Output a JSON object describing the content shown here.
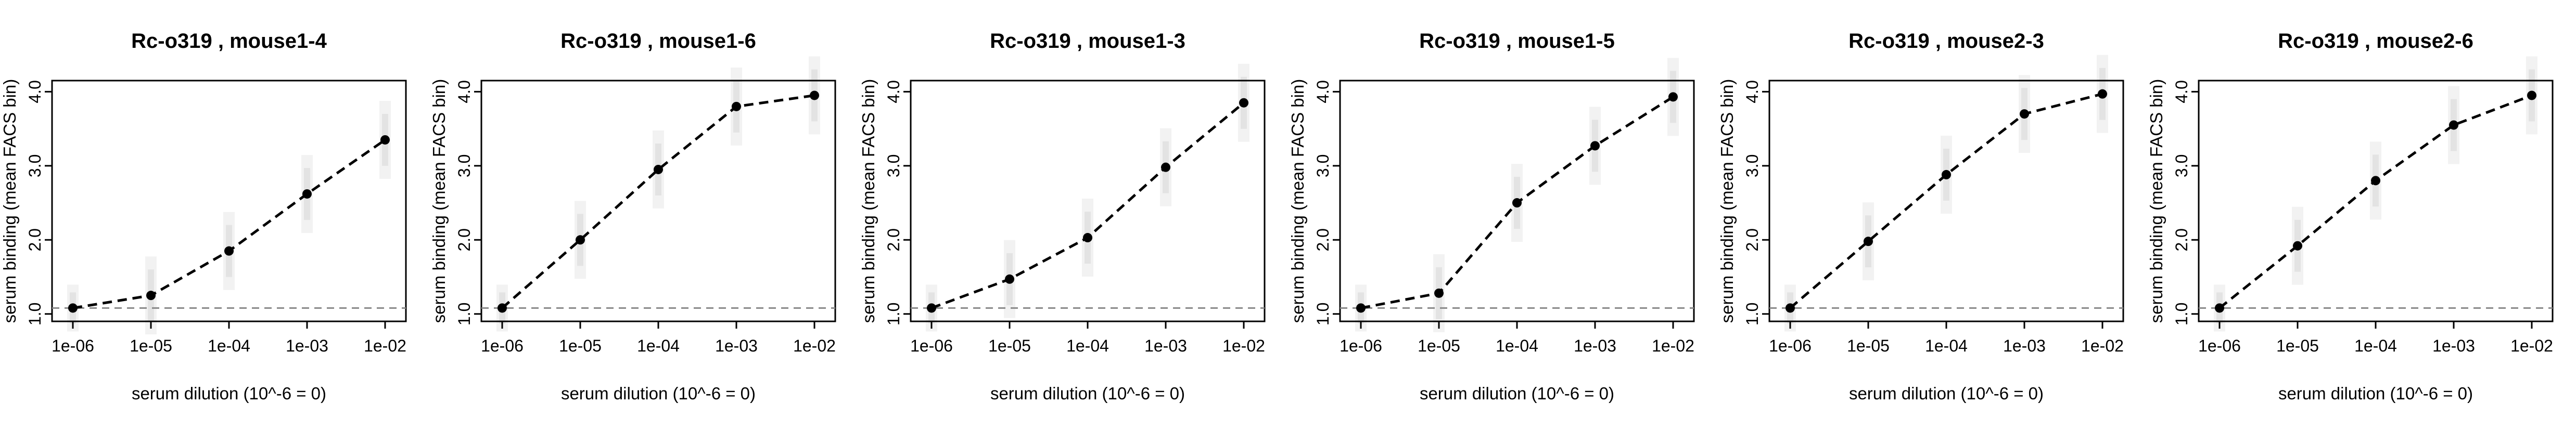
{
  "chart_data": [
    {
      "type": "line",
      "title": "Rc-o319 , mouse1-4",
      "xlabel": "serum dilution (10^-6 = 0)",
      "ylabel": "serum binding (mean FACS bin)",
      "x_scale": "log",
      "x": [
        1e-06,
        1e-05,
        0.0001,
        0.001,
        0.01
      ],
      "x_ticklabels": [
        "1e-06",
        "1e-05",
        "1e-04",
        "1e-03",
        "1e-02"
      ],
      "ylim": [
        0.9,
        4.15
      ],
      "y_ticklabels": [
        "1.0",
        "2.0",
        "3.0",
        "4.0"
      ],
      "series": [
        {
          "values": [
            1.08,
            1.25,
            1.85,
            2.62,
            3.35
          ]
        }
      ],
      "reference_line": {
        "y": 1.08,
        "style": "dashed",
        "color": "#888888"
      }
    },
    {
      "type": "line",
      "title": "Rc-o319 , mouse1-6",
      "xlabel": "serum dilution (10^-6 = 0)",
      "ylabel": "serum binding (mean FACS bin)",
      "x_scale": "log",
      "x": [
        1e-06,
        1e-05,
        0.0001,
        0.001,
        0.01
      ],
      "x_ticklabels": [
        "1e-06",
        "1e-05",
        "1e-04",
        "1e-03",
        "1e-02"
      ],
      "ylim": [
        0.9,
        4.15
      ],
      "y_ticklabels": [
        "1.0",
        "2.0",
        "3.0",
        "4.0"
      ],
      "series": [
        {
          "values": [
            1.08,
            2.0,
            2.95,
            3.8,
            3.95
          ]
        }
      ],
      "reference_line": {
        "y": 1.08,
        "style": "dashed",
        "color": "#888888"
      }
    },
    {
      "type": "line",
      "title": "Rc-o319 , mouse1-3",
      "xlabel": "serum dilution (10^-6 = 0)",
      "ylabel": "serum binding (mean FACS bin)",
      "x_scale": "log",
      "x": [
        1e-06,
        1e-05,
        0.0001,
        0.001,
        0.01
      ],
      "x_ticklabels": [
        "1e-06",
        "1e-05",
        "1e-04",
        "1e-03",
        "1e-02"
      ],
      "ylim": [
        0.9,
        4.15
      ],
      "y_ticklabels": [
        "1.0",
        "2.0",
        "3.0",
        "4.0"
      ],
      "series": [
        {
          "values": [
            1.08,
            1.47,
            2.03,
            2.98,
            3.85
          ]
        }
      ],
      "reference_line": {
        "y": 1.08,
        "style": "dashed",
        "color": "#888888"
      }
    },
    {
      "type": "line",
      "title": "Rc-o319 , mouse1-5",
      "xlabel": "serum dilution (10^-6 = 0)",
      "ylabel": "serum binding (mean FACS bin)",
      "x_scale": "log",
      "x": [
        1e-06,
        1e-05,
        0.0001,
        0.001,
        0.01
      ],
      "x_ticklabels": [
        "1e-06",
        "1e-05",
        "1e-04",
        "1e-03",
        "1e-02"
      ],
      "ylim": [
        0.9,
        4.15
      ],
      "y_ticklabels": [
        "1.0",
        "2.0",
        "3.0",
        "4.0"
      ],
      "series": [
        {
          "values": [
            1.08,
            1.28,
            2.5,
            3.27,
            3.93
          ]
        }
      ],
      "reference_line": {
        "y": 1.08,
        "style": "dashed",
        "color": "#888888"
      }
    },
    {
      "type": "line",
      "title": "Rc-o319 , mouse2-3",
      "xlabel": "serum dilution (10^-6 = 0)",
      "ylabel": "serum binding (mean FACS bin)",
      "x_scale": "log",
      "x": [
        1e-06,
        1e-05,
        0.0001,
        0.001,
        0.01
      ],
      "x_ticklabels": [
        "1e-06",
        "1e-05",
        "1e-04",
        "1e-03",
        "1e-02"
      ],
      "ylim": [
        0.9,
        4.15
      ],
      "y_ticklabels": [
        "1.0",
        "2.0",
        "3.0",
        "4.0"
      ],
      "series": [
        {
          "values": [
            1.08,
            1.98,
            2.88,
            3.7,
            3.97
          ]
        }
      ],
      "reference_line": {
        "y": 1.08,
        "style": "dashed",
        "color": "#888888"
      }
    },
    {
      "type": "line",
      "title": "Rc-o319 , mouse2-6",
      "xlabel": "serum dilution (10^-6 = 0)",
      "ylabel": "serum binding (mean FACS bin)",
      "x_scale": "log",
      "x": [
        1e-06,
        1e-05,
        0.0001,
        0.001,
        0.01
      ],
      "x_ticklabels": [
        "1e-06",
        "1e-05",
        "1e-04",
        "1e-03",
        "1e-02"
      ],
      "ylim": [
        0.9,
        4.15
      ],
      "y_ticklabels": [
        "1.0",
        "2.0",
        "3.0",
        "4.0"
      ],
      "series": [
        {
          "values": [
            1.08,
            1.92,
            2.8,
            3.55,
            3.95
          ]
        }
      ],
      "reference_line": {
        "y": 1.08,
        "style": "dashed",
        "color": "#888888"
      }
    }
  ],
  "style": {
    "line_color": "#000000",
    "point_color": "#000000",
    "reference_color": "#888888",
    "axis_color": "#000000"
  }
}
